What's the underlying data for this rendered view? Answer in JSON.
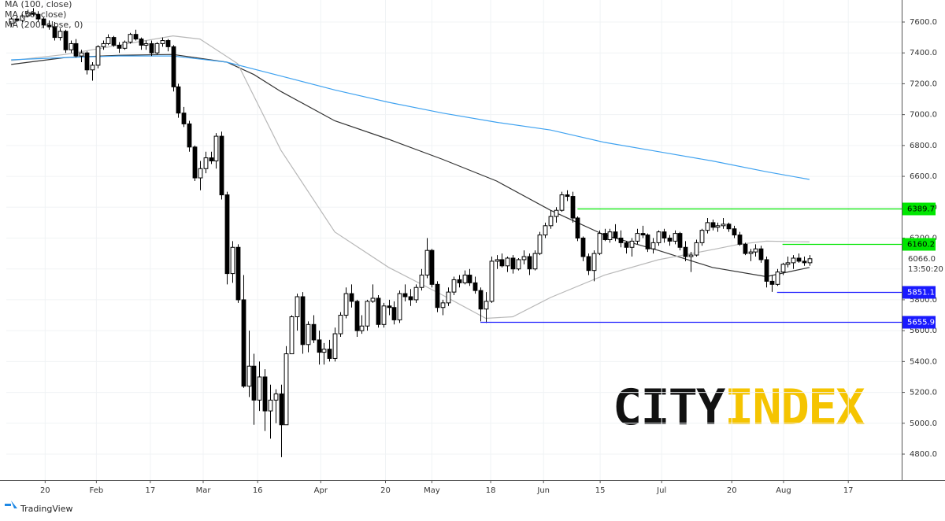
{
  "chart_data": {
    "type": "candlestick",
    "legend": [
      "MA (100, close)",
      "MA (50, close)",
      "MA (200, close, 0)"
    ],
    "watermark": [
      "CITY",
      "INDEX"
    ],
    "footer": "TradingView",
    "xlim": [
      -0.9,
      165.1
    ],
    "ylim": [
      4631.7,
      7742.8
    ],
    "grid": true,
    "up_color": "#ffffff",
    "down_color": "#000000",
    "xticks": [
      {
        "value": 6.3,
        "label": "20"
      },
      {
        "value": 15.8,
        "label": "Feb"
      },
      {
        "value": 25.8,
        "label": "17"
      },
      {
        "value": 35.6,
        "label": "Mar"
      },
      {
        "value": 45.7,
        "label": "16"
      },
      {
        "value": 57.4,
        "label": "Apr"
      },
      {
        "value": 69.4,
        "label": "20"
      },
      {
        "value": 78.0,
        "label": "May"
      },
      {
        "value": 88.9,
        "label": "18"
      },
      {
        "value": 98.7,
        "label": "Jun"
      },
      {
        "value": 109.2,
        "label": "15"
      },
      {
        "value": 120.6,
        "label": "Jul"
      },
      {
        "value": 133.6,
        "label": "20"
      },
      {
        "value": 143.2,
        "label": "Aug"
      },
      {
        "value": 155.2,
        "label": "17"
      }
    ],
    "yticks": [
      {
        "value": 4800,
        "label": "4800.0"
      },
      {
        "value": 5000,
        "label": "5000.0"
      },
      {
        "value": 5200,
        "label": "5200.0"
      },
      {
        "value": 5400,
        "label": "5400.0"
      },
      {
        "value": 5600,
        "label": "5600.0"
      },
      {
        "value": 5800,
        "label": "5800.0"
      },
      {
        "value": 6000,
        "label": "6000.0"
      },
      {
        "value": 6200,
        "label": "6200.0"
      },
      {
        "value": 6400,
        "label": "6400.0"
      },
      {
        "value": 6600,
        "label": "6600.0"
      },
      {
        "value": 6800,
        "label": "6800.0"
      },
      {
        "value": 7000,
        "label": "7000.0"
      },
      {
        "value": 7200,
        "label": "7200.0"
      },
      {
        "value": 7400,
        "label": "7400.0"
      },
      {
        "value": 7600,
        "label": "7600.0"
      }
    ],
    "open": [
      7590,
      7620,
      7610,
      7640,
      7660,
      7650,
      7620,
      7580,
      7570,
      7500,
      7540,
      7420,
      7460,
      7380,
      7400,
      7290,
      7320,
      7440,
      7460,
      7500,
      7450,
      7430,
      7470,
      7520,
      7490,
      7450,
      7460,
      7400,
      7460,
      7480,
      7440,
      7180,
      7010,
      6940,
      6790,
      6590,
      6650,
      6720,
      6700,
      6860,
      6480,
      5970,
      6140,
      5800,
      5240,
      5370,
      5150,
      5300,
      5080,
      5150,
      5190,
      4990,
      5450,
      5690,
      5820,
      5510,
      5640,
      5540,
      5460,
      5480,
      5420,
      5580,
      5700,
      5840,
      5790,
      5600,
      5630,
      5790,
      5810,
      5640,
      5760,
      5750,
      5670,
      5840,
      5820,
      5800,
      5880,
      5960,
      6120,
      5900,
      5750,
      5780,
      5850,
      5930,
      5910,
      5960,
      5910,
      5860,
      5740,
      5790,
      6050,
      6060,
      6020,
      6070,
      6000,
      6060,
      6080,
      6000,
      6100,
      6220,
      6280,
      6340,
      6380,
      6480,
      6470,
      6330,
      6200,
      6080,
      5990,
      6100,
      6230,
      6190,
      6240,
      6200,
      6170,
      6140,
      6180,
      6230,
      6220,
      6130,
      6170,
      6240,
      6200,
      6180,
      6230,
      6140,
      6080,
      6090,
      6170,
      6250,
      6300,
      6270,
      6280,
      6290,
      6260,
      6220,
      6160,
      6100,
      6110,
      6130,
      6060,
      5920,
      5900,
      5980,
      6030,
      6040,
      6070,
      6050,
      6040
    ],
    "high": [
      7630,
      7640,
      7650,
      7680,
      7690,
      7670,
      7630,
      7610,
      7600,
      7560,
      7550,
      7480,
      7490,
      7420,
      7410,
      7340,
      7450,
      7480,
      7520,
      7510,
      7470,
      7480,
      7530,
      7550,
      7500,
      7480,
      7480,
      7470,
      7500,
      7490,
      7450,
      7200,
      7050,
      6960,
      6800,
      6700,
      6760,
      6760,
      6880,
      6890,
      6500,
      6180,
      6160,
      5960,
      5600,
      5450,
      5400,
      5350,
      5250,
      5220,
      5250,
      5500,
      5700,
      5840,
      5850,
      5660,
      5700,
      5600,
      5520,
      5540,
      5620,
      5720,
      5880,
      5900,
      5800,
      5700,
      5800,
      5900,
      5830,
      5780,
      5800,
      5790,
      5860,
      5900,
      5870,
      5900,
      6000,
      6200,
      6130,
      5920,
      5800,
      5880,
      5950,
      5960,
      5990,
      6000,
      5950,
      5880,
      5850,
      6080,
      6090,
      6100,
      6080,
      6090,
      6070,
      6120,
      6100,
      6120,
      6240,
      6300,
      6380,
      6400,
      6500,
      6510,
      6500,
      6340,
      6210,
      6100,
      6120,
      6250,
      6260,
      6260,
      6290,
      6250,
      6180,
      6200,
      6260,
      6280,
      6230,
      6200,
      6250,
      6260,
      6220,
      6250,
      6240,
      6180,
      6110,
      6190,
      6260,
      6330,
      6320,
      6300,
      6330,
      6300,
      6280,
      6240,
      6170,
      6130,
      6160,
      6150,
      6080,
      5960,
      6000,
      6040,
      6080,
      6090,
      6100,
      6080,
      6090
    ],
    "low": [
      7570,
      7600,
      7600,
      7630,
      7640,
      7600,
      7560,
      7550,
      7480,
      7480,
      7400,
      7400,
      7370,
      7340,
      7260,
      7220,
      7300,
      7420,
      7450,
      7440,
      7400,
      7420,
      7460,
      7480,
      7420,
      7420,
      7380,
      7390,
      7440,
      7410,
      7150,
      6980,
      6920,
      6760,
      6570,
      6510,
      6620,
      6680,
      6650,
      6450,
      5900,
      5910,
      5780,
      5230,
      5170,
      4990,
      5080,
      4950,
      4900,
      5000,
      4780,
      4990,
      5450,
      5600,
      5450,
      5460,
      5520,
      5380,
      5380,
      5400,
      5400,
      5560,
      5680,
      5750,
      5560,
      5580,
      5600,
      5780,
      5620,
      5620,
      5700,
      5640,
      5650,
      5790,
      5760,
      5780,
      5860,
      5940,
      5880,
      5720,
      5700,
      5760,
      5830,
      5880,
      5900,
      5890,
      5840,
      5660,
      5650,
      5780,
      6000,
      6010,
      5980,
      5970,
      5990,
      6030,
      5960,
      5990,
      6090,
      6200,
      6260,
      6300,
      6370,
      6440,
      6300,
      6180,
      6050,
      5960,
      5920,
      6090,
      6180,
      6170,
      6180,
      6140,
      6100,
      6080,
      6160,
      6200,
      6110,
      6100,
      6150,
      6170,
      6150,
      6160,
      6120,
      6050,
      5980,
      6080,
      6150,
      6230,
      6250,
      6240,
      6260,
      6240,
      6200,
      6150,
      6090,
      6050,
      6080,
      6040,
      5880,
      5851,
      5890,
      5960,
      6010,
      6000,
      6040,
      6020,
      6020
    ],
    "close": [
      7620,
      7610,
      7640,
      7660,
      7650,
      7620,
      7580,
      7570,
      7500,
      7540,
      7420,
      7460,
      7380,
      7400,
      7290,
      7320,
      7440,
      7460,
      7500,
      7450,
      7430,
      7470,
      7520,
      7490,
      7450,
      7460,
      7400,
      7460,
      7480,
      7440,
      7180,
      7010,
      6940,
      6790,
      6590,
      6650,
      6720,
      6700,
      6860,
      6480,
      5970,
      6140,
      5800,
      5240,
      5370,
      5150,
      5300,
      5080,
      5150,
      5190,
      4990,
      5450,
      5690,
      5820,
      5510,
      5640,
      5540,
      5460,
      5480,
      5420,
      5580,
      5700,
      5840,
      5790,
      5600,
      5630,
      5790,
      5810,
      5640,
      5760,
      5750,
      5670,
      5840,
      5820,
      5800,
      5880,
      5960,
      6120,
      5900,
      5750,
      5780,
      5850,
      5930,
      5910,
      5960,
      5910,
      5860,
      5740,
      5790,
      6050,
      6060,
      6020,
      6070,
      6000,
      6060,
      6080,
      6000,
      6100,
      6220,
      6280,
      6340,
      6380,
      6480,
      6470,
      6330,
      6200,
      6080,
      5990,
      6100,
      6230,
      6190,
      6240,
      6200,
      6170,
      6140,
      6180,
      6230,
      6220,
      6130,
      6170,
      6240,
      6200,
      6180,
      6230,
      6140,
      6080,
      6090,
      6170,
      6250,
      6300,
      6270,
      6280,
      6290,
      6260,
      6220,
      6160,
      6100,
      6110,
      6130,
      6060,
      5920,
      5900,
      5980,
      6030,
      6040,
      6070,
      6050,
      6040,
      6066
    ],
    "series": [
      {
        "name": "MA (100, close)",
        "color": "#333333",
        "x": [
          0,
          10,
          20,
          30,
          40,
          45,
          50,
          60,
          70,
          80,
          90,
          100,
          105,
          110,
          120,
          130,
          140,
          148
        ],
        "values": [
          7325,
          7370,
          7385,
          7390,
          7340,
          7260,
          7150,
          6960,
          6840,
          6710,
          6570,
          6380,
          6300,
          6220,
          6120,
          6010,
          5950,
          6010
        ]
      },
      {
        "name": "MA (50, close)",
        "color": "#b8b8b8",
        "x": [
          0,
          10,
          20,
          30,
          35,
          42,
          50,
          60,
          70,
          80,
          88,
          93,
          100,
          110,
          120,
          130,
          135,
          140,
          148
        ],
        "values": [
          7350,
          7390,
          7450,
          7510,
          7490,
          7330,
          6770,
          6240,
          6010,
          5830,
          5680,
          5690,
          5815,
          5960,
          6060,
          6125,
          6160,
          6180,
          6175
        ]
      },
      {
        "name": "MA (200, close, 0)",
        "color": "#3fa2f0",
        "x": [
          0,
          10,
          20,
          30,
          40,
          50,
          60,
          70,
          80,
          90,
          100,
          105,
          110,
          120,
          130,
          140,
          148
        ],
        "values": [
          7355,
          7370,
          7380,
          7380,
          7340,
          7250,
          7160,
          7080,
          7010,
          6950,
          6900,
          6860,
          6820,
          6760,
          6700,
          6630,
          6580
        ]
      }
    ],
    "levels": [
      {
        "value": 6389.7,
        "color": "#00e600",
        "start": 105
      },
      {
        "value": 6160.2,
        "color": "#00e600",
        "start": 143
      },
      {
        "value": 5851.1,
        "color": "#1a1aff",
        "start": 142
      },
      {
        "value": 5655.9,
        "color": "#1a1aff",
        "start": 87
      }
    ],
    "last_price": {
      "value": 6066,
      "label": "6066.0",
      "countdown": "13:50:20"
    }
  }
}
